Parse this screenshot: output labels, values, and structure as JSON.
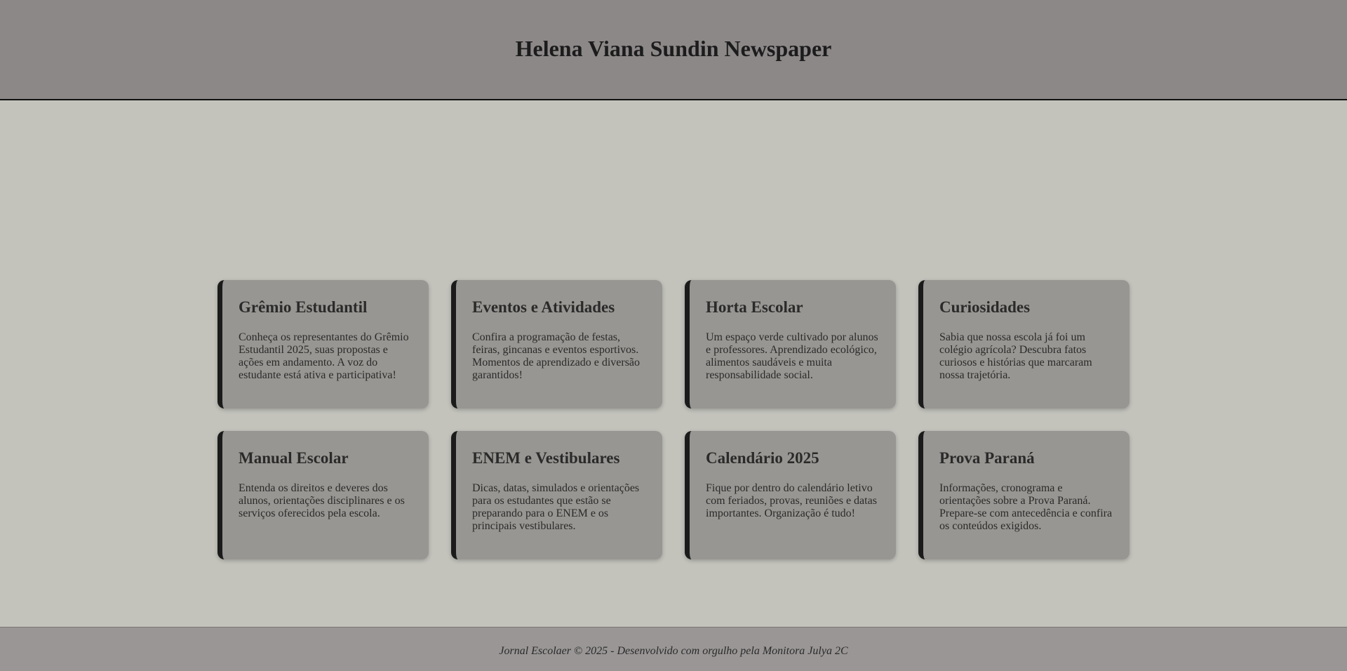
{
  "header": {
    "title": "Helena Viana Sundin Newspaper"
  },
  "cards": [
    {
      "title": "Grêmio Estudantil",
      "text": "Conheça os representantes do Grêmio Estudantil 2025, suas propostas e ações em andamento. A voz do estudante está ativa e participativa!"
    },
    {
      "title": "Eventos e Atividades",
      "text": "Confira a programação de festas, feiras, gincanas e eventos esportivos. Momentos de aprendizado e diversão garantidos!"
    },
    {
      "title": "Horta Escolar",
      "text": "Um espaço verde cultivado por alunos e professores. Aprendizado ecológico, alimentos saudáveis e muita responsabilidade social."
    },
    {
      "title": "Curiosidades",
      "text": "Sabia que nossa escola já foi um colégio agrícola? Descubra fatos curiosos e histórias que marcaram nossa trajetória."
    },
    {
      "title": "Manual Escolar",
      "text": "Entenda os direitos e deveres dos alunos, orientações disciplinares e os serviços oferecidos pela escola."
    },
    {
      "title": "ENEM e Vestibulares",
      "text": "Dicas, datas, simulados e orientações para os estudantes que estão se preparando para o ENEM e os principais vestibulares."
    },
    {
      "title": "Calendário 2025",
      "text": "Fique por dentro do calendário letivo com feriados, provas, reuniões e datas importantes. Organização é tudo!"
    },
    {
      "title": "Prova Paraná",
      "text": "Informações, cronograma e orientações sobre a Prova Paraná. Prepare-se com antecedência e confira os conteúdos exigidos."
    }
  ],
  "footer": {
    "text": "Jornal Escolaer © 2025 - Desenvolvido com orgulho pela Monitora Julya 2C"
  },
  "colors": {
    "header_bg": "#8d8888",
    "page_bg": "#c3c3bc",
    "card_bg": "#989692",
    "card_accent": "#1b1b1b",
    "footer_bg": "#9a9696"
  }
}
